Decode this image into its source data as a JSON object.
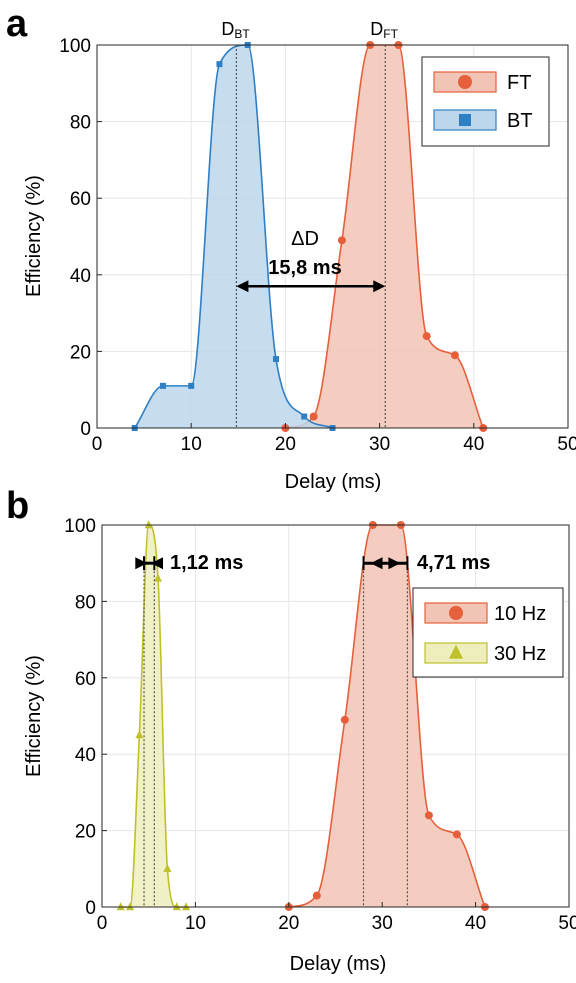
{
  "panels": [
    {
      "label": "a",
      "xlabel": "Delay (ms)",
      "ylabel": "Efficiency (%)"
    },
    {
      "label": "b",
      "xlabel": "Delay (ms)",
      "ylabel": "Efficiency (%)"
    }
  ],
  "colors": {
    "ft_line": "#e5603a",
    "ft_fill": "#f2c4b5",
    "bt_line": "#2f7fc4",
    "bt_fill": "#bcd7ec",
    "hz30_line": "#bfc12a",
    "hz30_fill": "#eeeebd",
    "grid": "#e6e6e6",
    "dotted": "#555555"
  },
  "chart_data": [
    {
      "type": "area",
      "panel": "a",
      "xlabel": "Delay (ms)",
      "ylabel": "Efficiency (%)",
      "xlim": [
        0,
        50
      ],
      "ylim": [
        0,
        100
      ],
      "xticks": [
        0,
        10,
        20,
        30,
        40,
        50
      ],
      "yticks": [
        0,
        20,
        40,
        60,
        80,
        100
      ],
      "grid": true,
      "legend_position": "top-right",
      "series": [
        {
          "name": "FT",
          "marker": "circle",
          "color": "#e5603a",
          "x": [
            20,
            23,
            26,
            29,
            32,
            35,
            38,
            41
          ],
          "y": [
            0,
            3,
            49,
            100,
            100,
            24,
            19,
            0
          ]
        },
        {
          "name": "BT",
          "marker": "square",
          "color": "#2f7fc4",
          "x": [
            4,
            7,
            10,
            13,
            16,
            19,
            22,
            25
          ],
          "y": [
            0,
            11,
            11,
            95,
            100,
            18,
            3,
            0
          ]
        }
      ],
      "annotations": {
        "dbt": {
          "label_main": "D",
          "label_sub": "BT",
          "x": 14.8
        },
        "dft": {
          "label_main": "D",
          "label_sub": "FT",
          "x": 30.6
        },
        "delta_label": "ΔD",
        "delta_value": "15,8 ms",
        "arrow_y": 37
      }
    },
    {
      "type": "area",
      "panel": "b",
      "xlabel": "Delay (ms)",
      "ylabel": "Efficiency (%)",
      "xlim": [
        0,
        50
      ],
      "ylim": [
        0,
        100
      ],
      "xticks": [
        0,
        10,
        20,
        30,
        40,
        50
      ],
      "yticks": [
        0,
        20,
        40,
        60,
        80,
        100
      ],
      "grid": true,
      "legend_position": "middle-right",
      "series": [
        {
          "name": "10 Hz",
          "marker": "circle",
          "color": "#e5603a",
          "x": [
            20,
            23,
            26,
            29,
            32,
            35,
            38,
            41
          ],
          "y": [
            0,
            3,
            49,
            100,
            100,
            24,
            19,
            0
          ]
        },
        {
          "name": "30 Hz",
          "marker": "triangle",
          "color": "#bfc12a",
          "x": [
            2,
            3,
            4,
            5,
            6,
            7,
            8,
            9
          ],
          "y": [
            0,
            0,
            45,
            100,
            86,
            10,
            0,
            0
          ]
        }
      ],
      "annotations": {
        "width_30": {
          "label": "1,12 ms",
          "x1": 4.5,
          "x2": 5.6,
          "y": 90
        },
        "width_10": {
          "label": "4,71 ms",
          "x1": 28.0,
          "x2": 32.7,
          "y": 90
        }
      }
    }
  ]
}
